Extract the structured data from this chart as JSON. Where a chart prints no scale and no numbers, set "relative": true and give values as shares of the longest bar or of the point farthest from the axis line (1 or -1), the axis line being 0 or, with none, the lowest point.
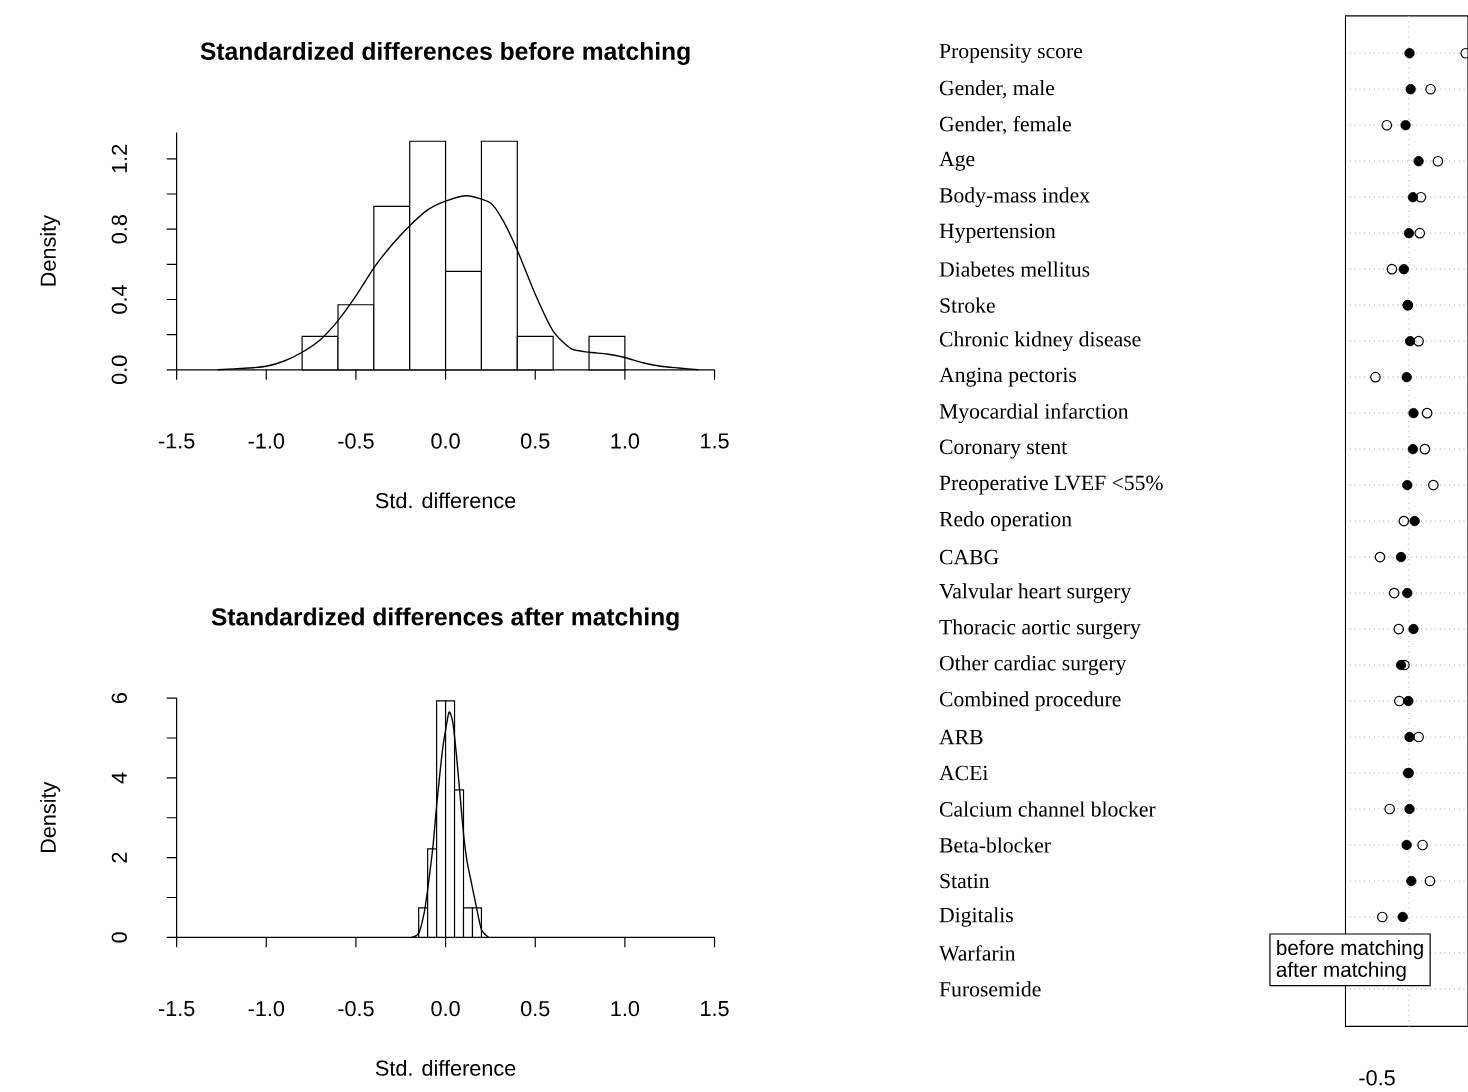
{
  "chart_data": [
    {
      "type": "histogram",
      "title": "Standardized differences before matching",
      "xlabel": "Std. difference",
      "ylabel": "Density",
      "color": "#ffffff",
      "bins": [
        -0.8,
        -0.6,
        -0.4,
        -0.2,
        0,
        0.2,
        0.4,
        0.6,
        0.8,
        1.0
      ],
      "values": [
        0.19,
        0.37,
        0.93,
        1.3,
        0.56,
        1.3,
        0.19,
        0,
        0.19
      ],
      "series": [
        {
          "type": "line",
          "color": "#000000",
          "x": [
            -1.27,
            -1.1,
            -1.0,
            -0.9,
            -0.8,
            -0.7,
            -0.6,
            -0.5,
            -0.4,
            -0.3,
            -0.2,
            -0.1,
            0,
            0.12,
            0.25,
            0.32,
            0.4,
            0.5,
            0.6,
            0.7,
            0.8,
            0.9,
            1.0,
            1.1,
            1.2,
            1.3,
            1.41
          ],
          "values": [
            0,
            0.01,
            0.02,
            0.05,
            0.1,
            0.17,
            0.28,
            0.42,
            0.58,
            0.71,
            0.82,
            0.91,
            0.96,
            0.99,
            0.95,
            0.85,
            0.68,
            0.43,
            0.22,
            0.12,
            0.1,
            0.09,
            0.07,
            0.04,
            0.02,
            0.01,
            0
          ]
        }
      ],
      "xlim": [
        -1.5,
        1.5
      ],
      "ylim": [
        0,
        1.35
      ],
      "xticks": [
        -1.5,
        {
          "value": -1.0,
          "label": "-1.0"
        },
        -0.5,
        {
          "value": 0,
          "label": "0.0"
        },
        0.5,
        {
          "value": 1.0,
          "label": "1.0"
        },
        1.5
      ],
      "yticks": [
        {
          "value": 0,
          "label": "0.0"
        },
        {
          "value": 0.2,
          "label": null
        },
        0.4,
        {
          "value": 0.6,
          "label": null
        },
        0.8,
        {
          "value": 1.0,
          "label": null
        },
        1.2
      ]
    },
    {
      "type": "histogram",
      "title": "Standardized differences after matching",
      "xlabel": "Std. difference",
      "ylabel": "Density",
      "color": "#ffffff",
      "bins": [
        -0.15,
        -0.1,
        -0.05,
        0,
        0.05,
        0.1,
        0.15,
        0.2
      ],
      "values": [
        0.74,
        2.22,
        5.93,
        5.93,
        3.7,
        0.74,
        0.74
      ],
      "series": [
        {
          "type": "line",
          "color": "#000000",
          "x": [
            -0.19,
            -0.15,
            -0.12,
            -0.1,
            -0.07,
            -0.05,
            -0.02,
            0,
            0.02,
            0.04,
            0.06,
            0.08,
            0.1,
            0.12,
            0.145,
            0.17,
            0.2,
            0.24
          ],
          "values": [
            0,
            0.1,
            0.6,
            1.2,
            2.3,
            3.3,
            4.6,
            5.2,
            5.65,
            5.4,
            4.6,
            3.6,
            2.6,
            1.9,
            1.35,
            0.8,
            0.2,
            0
          ]
        }
      ],
      "xlim": [
        -1.5,
        1.5
      ],
      "ylim": [
        0,
        6
      ],
      "xticks": [
        -1.5,
        {
          "value": -1.0,
          "label": "-1.0"
        },
        -0.5,
        {
          "value": 0,
          "label": "0.0"
        },
        0.5,
        {
          "value": 1.0,
          "label": "1.0"
        },
        1.5
      ],
      "yticks": [
        0,
        {
          "value": 1,
          "label": null
        },
        2,
        {
          "value": 3,
          "label": null
        },
        4,
        {
          "value": 5,
          "label": null
        },
        6
      ]
    },
    {
      "type": "scatter",
      "orientation": "horizontal",
      "relative": true,
      "marker": "circle",
      "grid": "y",
      "legend": "bottom left",
      "annotations": [
        "-0.5"
      ],
      "categories": [
        "Propensity score",
        "Gender, male",
        "Gender, female",
        "Age",
        "Body-mass index",
        "Hypertension",
        "Diabetes mellitus",
        "Stroke",
        "Chronic kidney disease",
        "Angina pectoris",
        "Myocardial infarction",
        "Coronary stent",
        "Preoperative LVEF <55%",
        "Redo operation",
        "CABG",
        "Valvular heart surgery",
        "Thoracic aortic surgery",
        "Other cardiac surgery",
        "Combined procedure",
        "ARB",
        "ACEi",
        "Calcium channel blocker",
        "Beta-blocker",
        "Statin",
        "Digitalis",
        "Warfarin",
        "Furosemide"
      ],
      "series": [
        {
          "name": "before matching",
          "color": "#000000",
          "values": [
            1,
            0.38,
            -0.39,
            0.51,
            0.21,
            0.19,
            -0.3,
            -0.02,
            0.17,
            -0.59,
            0.32,
            0.28,
            0.43,
            -0.09,
            -0.51,
            -0.26,
            -0.18,
            -0.08,
            -0.17,
            0.17,
            -0.01,
            -0.34,
            0.24,
            0.37,
            -0.47,
            null,
            null
          ]
        },
        {
          "name": "after matching",
          "color": "#000000",
          "values": [
            0.01,
            0.03,
            -0.06,
            0.17,
            0.07,
            0,
            -0.09,
            -0.02,
            0.02,
            -0.04,
            0.08,
            0.07,
            -0.03,
            0.1,
            -0.14,
            -0.03,
            0.08,
            -0.14,
            -0.01,
            0.01,
            -0.01,
            0.01,
            -0.04,
            0.04,
            -0.11,
            null,
            null
          ]
        }
      ],
      "ref_lines": [
        {
          "axis": "x",
          "value": 0,
          "line_style": "dotted",
          "color": "#bebebe"
        }
      ]
    }
  ]
}
